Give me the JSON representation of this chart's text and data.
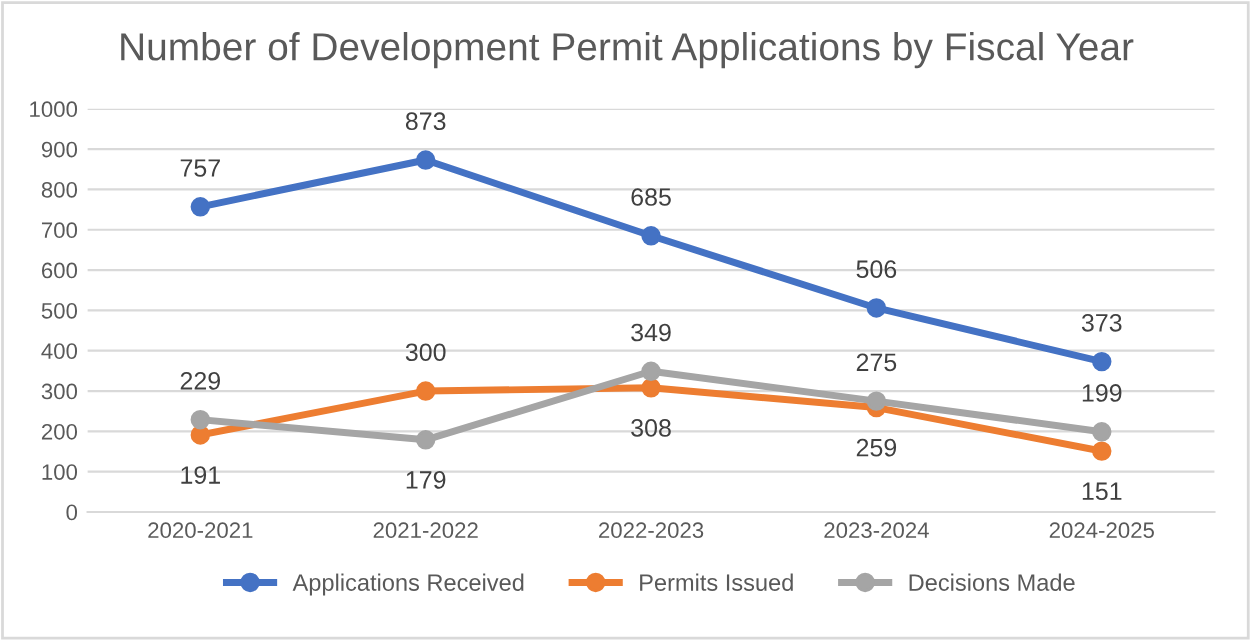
{
  "chart_data": {
    "type": "line",
    "title": "Number of Development Permit Applications by Fiscal Year",
    "categories": [
      "2020-2021",
      "2021-2022",
      "2022-2023",
      "2023-2024",
      "2024-2025"
    ],
    "series": [
      {
        "name": "Applications Received",
        "color": "#4472c4",
        "values": [
          757,
          873,
          685,
          506,
          373
        ]
      },
      {
        "name": "Permits Issued",
        "color": "#ed7d31",
        "values": [
          191,
          300,
          308,
          259,
          151
        ]
      },
      {
        "name": "Decisions Made",
        "color": "#a5a5a5",
        "values": [
          229,
          179,
          349,
          275,
          199
        ]
      }
    ],
    "ylim": [
      0,
      1000
    ],
    "yticks": [
      0,
      100,
      200,
      300,
      400,
      500,
      600,
      700,
      800,
      900,
      1000
    ],
    "grid": "y",
    "legend": "bottom",
    "marker": "circle",
    "line_style": "solid",
    "data_labels": true
  }
}
